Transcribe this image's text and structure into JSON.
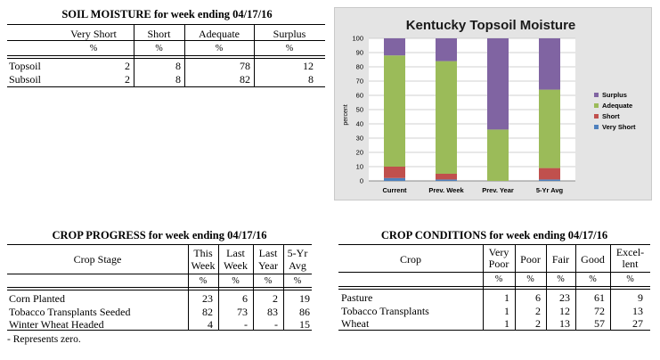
{
  "soil_moisture": {
    "title": "SOIL MOISTURE for week ending 04/17/16",
    "columns": [
      "Very Short",
      "Short",
      "Adequate",
      "Surplus"
    ],
    "units": [
      "%",
      "%",
      "%",
      "%"
    ],
    "rows": [
      {
        "label": "Topsoil",
        "values": [
          "2",
          "8",
          "78",
          "12"
        ]
      },
      {
        "label": "Subsoil",
        "values": [
          "2",
          "8",
          "82",
          "8"
        ]
      }
    ]
  },
  "crop_progress": {
    "title": "CROP PROGRESS for week ending 04/17/16",
    "stage_header": "Crop Stage",
    "columns": [
      {
        "line1": "This",
        "line2": "Week"
      },
      {
        "line1": "Last",
        "line2": "Week"
      },
      {
        "line1": "Last",
        "line2": "Year"
      },
      {
        "line1": "5-Yr",
        "line2": "Avg"
      }
    ],
    "units": [
      "%",
      "%",
      "%",
      "%"
    ],
    "rows": [
      {
        "label": "Corn Planted",
        "values": [
          "23",
          "6",
          "2",
          "19"
        ]
      },
      {
        "label": "Tobacco Transplants Seeded",
        "values": [
          "82",
          "73",
          "83",
          "86"
        ]
      },
      {
        "label": "Winter Wheat Headed",
        "values": [
          "4",
          "-",
          "-",
          "15"
        ]
      }
    ],
    "footnote": "- Represents zero."
  },
  "crop_conditions": {
    "title": "CROP CONDITIONS for week ending 04/17/16",
    "crop_header": "Crop",
    "columns": [
      {
        "line1": "Very",
        "line2": "Poor"
      },
      {
        "line1": "Poor",
        "line2": ""
      },
      {
        "line1": "Fair",
        "line2": ""
      },
      {
        "line1": "Good",
        "line2": ""
      },
      {
        "line1": "Excel-",
        "line2": "lent"
      }
    ],
    "units": [
      "%",
      "%",
      "%",
      "%",
      "%"
    ],
    "rows": [
      {
        "label": "Pasture",
        "values": [
          "1",
          "6",
          "23",
          "61",
          "9"
        ]
      },
      {
        "label": "Tobacco Transplants",
        "values": [
          "1",
          "2",
          "12",
          "72",
          "13"
        ]
      },
      {
        "label": "Wheat",
        "values": [
          "1",
          "2",
          "13",
          "57",
          "27"
        ]
      }
    ]
  },
  "chart_data": {
    "type": "bar",
    "stacked": true,
    "title": "Kentucky Topsoil Moisture",
    "ylabel": "percent",
    "xlabel": "",
    "ylim": [
      0,
      100
    ],
    "yticks": [
      0,
      10,
      20,
      30,
      40,
      50,
      60,
      70,
      80,
      90,
      100
    ],
    "categories": [
      "Current",
      "Prev. Week",
      "Prev. Year",
      "5-Yr Avg"
    ],
    "series": [
      {
        "name": "Very Short",
        "color": "#4f81bd",
        "values": [
          2,
          1,
          0,
          1
        ]
      },
      {
        "name": "Short",
        "color": "#c0504d",
        "values": [
          8,
          4,
          0,
          8
        ]
      },
      {
        "name": "Adequate",
        "color": "#9bbb59",
        "values": [
          78,
          79,
          36,
          55
        ]
      },
      {
        "name": "Surplus",
        "color": "#8064a2",
        "values": [
          12,
          16,
          64,
          36
        ]
      }
    ],
    "legend_position": "right",
    "grid": true
  }
}
